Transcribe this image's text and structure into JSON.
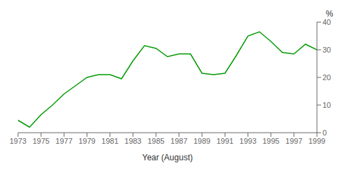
{
  "chart_data": {
    "type": "line",
    "xlabel": "Year (August)",
    "ylabel": "%",
    "x": [
      1973,
      1974,
      1975,
      1976,
      1977,
      1978,
      1979,
      1980,
      1981,
      1982,
      1983,
      1984,
      1985,
      1986,
      1987,
      1988,
      1989,
      1990,
      1991,
      1992,
      1993,
      1994,
      1995,
      1996,
      1997,
      1998,
      1999
    ],
    "values": [
      4.5,
      2.0,
      6.5,
      10.0,
      14.0,
      17.0,
      20.0,
      21.0,
      21.0,
      19.5,
      26.0,
      31.5,
      30.5,
      27.5,
      28.5,
      28.5,
      21.5,
      21.0,
      21.5,
      28.0,
      35.0,
      36.5,
      33.0,
      29.0,
      28.5,
      32.0,
      30.0
    ],
    "color": "#009900",
    "xlim": [
      1973,
      1999
    ],
    "ylim": [
      0,
      40
    ],
    "xticks": [
      1973,
      1975,
      1977,
      1979,
      1981,
      1983,
      1985,
      1987,
      1989,
      1991,
      1993,
      1995,
      1997,
      1999
    ],
    "yticks": [
      0,
      10,
      20,
      30,
      40
    ],
    "grid": false
  }
}
